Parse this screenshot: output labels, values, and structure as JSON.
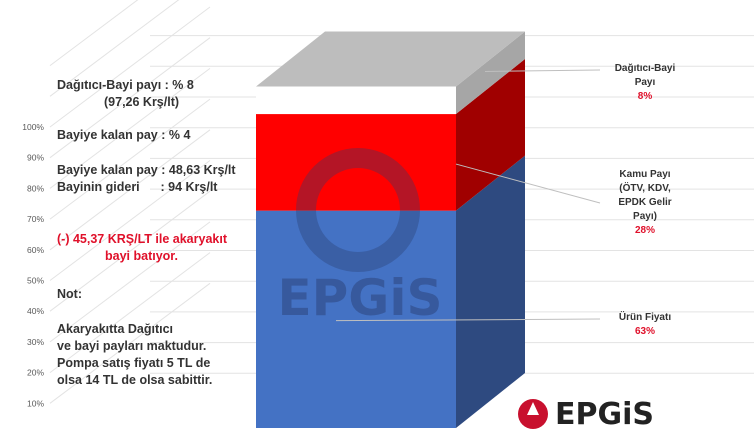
{
  "chart_data": {
    "type": "bar",
    "stacked": true,
    "three_d": true,
    "categories": [
      ""
    ],
    "series": [
      {
        "name": "Ürün Fiyatı",
        "values": [
          63
        ],
        "color": "#4472c4",
        "side_color": "#2e4a80"
      },
      {
        "name": "Kamu Payı (ÖTV, KDV, EPDK Gelir Payı)",
        "values": [
          28
        ],
        "color": "#ff0000",
        "side_color": "#a00000"
      },
      {
        "name": "Dağıtıcı-Bayi Payı",
        "values": [
          8
        ],
        "color": "#ffffff",
        "side_color": "#a6a6a6"
      }
    ],
    "yticks": [
      "10%",
      "20%",
      "30%",
      "40%",
      "50%",
      "60%",
      "70%",
      "80%",
      "90%",
      "100%"
    ],
    "ylim": [
      0,
      100
    ],
    "grid": true,
    "labels": [
      {
        "lines": [
          "Dağıtıcı-Bayi",
          "Payı"
        ],
        "pct": "8%"
      },
      {
        "lines": [
          "Kamu Payı",
          "(ÖTV, KDV,",
          "EPDK Gelir",
          "Payı)"
        ],
        "pct": "28%"
      },
      {
        "lines": [
          "Ürün Fiyatı"
        ],
        "pct": "63%"
      }
    ]
  },
  "notes": {
    "l1": "Dağıtıcı-Bayi payı : % 8",
    "l2": "(97,26 Krş/lt)",
    "l3": "Bayiye kalan pay : % 4",
    "l4": "Bayiye kalan pay : 48,63 Krş/lt",
    "l5": "Bayinin gideri      : 94 Krş/lt",
    "l6": "(-) 45,37 KRŞ/LT ile akaryakıt",
    "l7": "bayi batıyor.",
    "l8": "Not:",
    "l9": "Akaryakıtta  Dağıtıcı",
    "l10": "ve bayi payları maktudur.",
    "l11": "Pompa satış fiyatı 5 TL de",
    "l12": "olsa 14 TL de olsa sabittir."
  },
  "watermark": "EPGiS",
  "logo": "EPGiS"
}
